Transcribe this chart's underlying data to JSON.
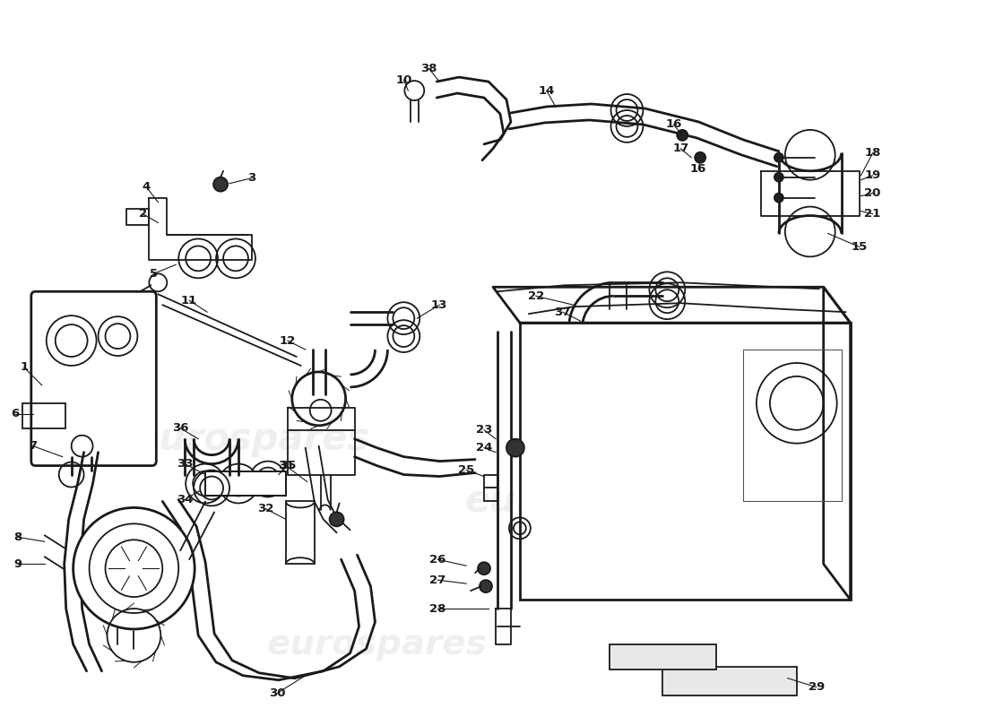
{
  "bg_color": "#ffffff",
  "line_color": "#1a1a1a",
  "watermark_text": "eurospares",
  "watermark_color": "#d0d0d0",
  "label_fontsize": 9.5,
  "lw_main": 1.3,
  "lw_thick": 2.0,
  "lw_thin": 0.7
}
